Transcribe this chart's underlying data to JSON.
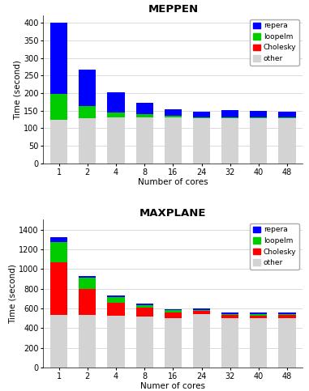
{
  "cores": [
    1,
    2,
    4,
    8,
    16,
    24,
    32,
    40,
    48
  ],
  "meppen": {
    "title": "MEPPEN",
    "xlabel": "Number of cores",
    "ylabel": "Time (second)",
    "ylim": [
      0,
      420
    ],
    "yticks": [
      0,
      50,
      100,
      150,
      200,
      250,
      300,
      350,
      400
    ],
    "other": [
      125,
      128,
      130,
      132,
      130,
      128,
      128,
      128,
      128
    ],
    "cholesky": [
      0,
      0,
      0,
      0,
      0,
      0,
      0,
      0,
      0
    ],
    "loopelm": [
      72,
      35,
      15,
      8,
      5,
      4,
      4,
      4,
      4
    ],
    "repera": [
      203,
      103,
      58,
      33,
      20,
      15,
      20,
      17,
      16
    ]
  },
  "maxplane": {
    "title": "MAXPLANE",
    "xlabel": "Numer of cores",
    "ylabel": "Time (second)",
    "ylim": [
      0,
      1500
    ],
    "yticks": [
      0,
      200,
      400,
      600,
      800,
      1000,
      1200,
      1400
    ],
    "other": [
      535,
      530,
      525,
      520,
      500,
      545,
      505,
      500,
      505
    ],
    "cholesky": [
      530,
      270,
      135,
      85,
      60,
      30,
      25,
      25,
      25
    ],
    "loopelm": [
      210,
      115,
      55,
      25,
      20,
      10,
      15,
      20,
      15
    ],
    "repera": [
      45,
      15,
      15,
      15,
      15,
      15,
      15,
      15,
      15
    ]
  },
  "colors": {
    "repera": "#0000ff",
    "loopelm": "#00cc00",
    "cholesky": "#ff0000",
    "other": "#d3d3d3"
  },
  "legend_labels": [
    "repera",
    "loopelm",
    "Cholesky",
    "other"
  ],
  "legend_colors": [
    "#0000ff",
    "#00cc00",
    "#ff0000",
    "#d3d3d3"
  ]
}
